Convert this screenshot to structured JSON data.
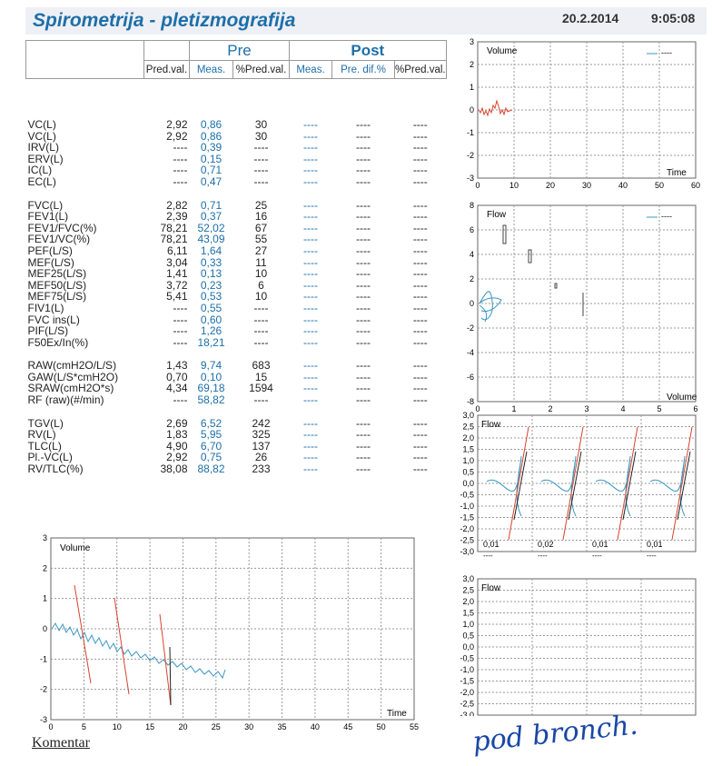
{
  "header": {
    "title": "Spirometrija - pletizmografija",
    "date": "20.2.2014",
    "time": "9:05:08"
  },
  "table": {
    "group_pre": "Pre",
    "group_post": "Post",
    "columns": [
      "Pred.val.",
      "Meas.",
      "%Pred.val.",
      "Meas.",
      "Pre. dif.%",
      "%Pred.val."
    ],
    "groups": [
      [
        [
          "VC(L)",
          "2,92",
          "0,86",
          "30",
          "----",
          "----",
          "----"
        ],
        [
          "VC(L)",
          "2,92",
          "0,86",
          "30",
          "----",
          "----",
          "----"
        ],
        [
          "IRV(L)",
          "----",
          "0,39",
          "----",
          "----",
          "----",
          "----"
        ],
        [
          "ERV(L)",
          "----",
          "0,15",
          "----",
          "----",
          "----",
          "----"
        ],
        [
          "IC(L)",
          "----",
          "0,71",
          "----",
          "----",
          "----",
          "----"
        ],
        [
          "EC(L)",
          "----",
          "0,47",
          "----",
          "----",
          "----",
          "----"
        ]
      ],
      [
        [
          "FVC(L)",
          "2,82",
          "0,71",
          "25",
          "----",
          "----",
          "----"
        ],
        [
          "FEV1(L)",
          "2,39",
          "0,37",
          "16",
          "----",
          "----",
          "----"
        ],
        [
          "FEV1/FVC(%)",
          "78,21",
          "52,02",
          "67",
          "----",
          "----",
          "----"
        ],
        [
          "FEV1/VC(%)",
          "78,21",
          "43,09",
          "55",
          "----",
          "----",
          "----"
        ],
        [
          "PEF(L/S)",
          "6,11",
          "1,64",
          "27",
          "----",
          "----",
          "----"
        ],
        [
          "MEF(L/S)",
          "3,04",
          "0,33",
          "11",
          "----",
          "----",
          "----"
        ],
        [
          "MEF25(L/S)",
          "1,41",
          "0,13",
          "10",
          "----",
          "----",
          "----"
        ],
        [
          "MEF50(L/S)",
          "3,72",
          "0,23",
          "6",
          "----",
          "----",
          "----"
        ],
        [
          "MEF75(L/S)",
          "5,41",
          "0,53",
          "10",
          "----",
          "----",
          "----"
        ],
        [
          "FIV1(L)",
          "----",
          "0,55",
          "----",
          "----",
          "----",
          "----"
        ],
        [
          "FVC ins(L)",
          "----",
          "0,60",
          "----",
          "----",
          "----",
          "----"
        ],
        [
          "PIF(L/S)",
          "----",
          "1,26",
          "----",
          "----",
          "----",
          "----"
        ],
        [
          "F50Ex/In(%)",
          "----",
          "18,21",
          "----",
          "----",
          "----",
          "----"
        ]
      ],
      [
        [
          "RAW(cmH2O/L/S)",
          "1,43",
          "9,74",
          "683",
          "----",
          "----",
          "----"
        ],
        [
          "GAW(L/S*cmH2O)",
          "0,70",
          "0,10",
          "15",
          "----",
          "----",
          "----"
        ],
        [
          "SRAW(cmH2O*s)",
          "4,34",
          "69,18",
          "1594",
          "----",
          "----",
          "----"
        ],
        [
          "RF (raw)(#/min)",
          "----",
          "58,82",
          "----",
          "----",
          "----",
          "----"
        ]
      ],
      [
        [
          "TGV(L)",
          "2,69",
          "6,52",
          "242",
          "----",
          "----",
          "----"
        ],
        [
          "RV(L)",
          "1,83",
          "5,95",
          "325",
          "----",
          "----",
          "----"
        ],
        [
          "TLC(L)",
          "4,90",
          "6,70",
          "137",
          "----",
          "----",
          "----"
        ],
        [
          "Pl.-VC(L)",
          "2,92",
          "0,75",
          "26",
          "----",
          "----",
          "----"
        ],
        [
          "RV/TLC(%)",
          "38,08",
          "88,82",
          "233",
          "----",
          "----",
          "----"
        ]
      ]
    ]
  },
  "charts": {
    "top_volume": {
      "title": "Volume",
      "xlabel": "Time",
      "legend": "----",
      "xticks": [
        "0",
        "10",
        "20",
        "30",
        "40",
        "50",
        "60"
      ],
      "yticks": [
        "3",
        "2",
        "1",
        "0",
        "-1",
        "-2",
        "-3"
      ]
    },
    "flow_volume": {
      "title": "Flow",
      "xlabel": "Volume",
      "legend": "----",
      "xticks": [
        "0",
        "1",
        "2",
        "3",
        "4",
        "5",
        "6"
      ],
      "yticks": [
        "8",
        "6",
        "4",
        "2",
        "0",
        "-2",
        "-4",
        "-6",
        "-8"
      ]
    },
    "flow_loops": {
      "title": "Flow",
      "yticks": [
        "3,0",
        "2,5",
        "2,0",
        "1,5",
        "1,0",
        "0,5",
        "0,0",
        "-0,5",
        "-1,0",
        "-1,5",
        "-2,0",
        "-2,5",
        "-3,0"
      ],
      "loop_values": [
        "0,01",
        "0,02",
        "0,01",
        "0,01"
      ],
      "loop_legends": [
        "----",
        "----",
        "----",
        "----"
      ]
    },
    "flow_empty": {
      "title": "Flow",
      "yticks": [
        "3,0",
        "2,5",
        "2,0",
        "1,5",
        "1,0",
        "0,5",
        "0,0",
        "-0,5",
        "-1,0",
        "-1,5",
        "-2,0",
        "-2,5",
        "-3,0"
      ]
    },
    "bottom_volume": {
      "title": "Volume",
      "xlabel": "Time",
      "xticks": [
        "0",
        "5",
        "10",
        "15",
        "20",
        "25",
        "30",
        "35",
        "40",
        "45",
        "50",
        "55"
      ],
      "yticks": [
        "3",
        "2",
        "1",
        "0",
        "-1",
        "-2",
        "-3"
      ]
    }
  },
  "footer": {
    "comment_label": "Komentar",
    "handwritten": "pod bronch."
  },
  "colors": {
    "accent": "#1d6fa8",
    "trace_blue": "#3a97c4",
    "trace_red": "#d9442e"
  }
}
